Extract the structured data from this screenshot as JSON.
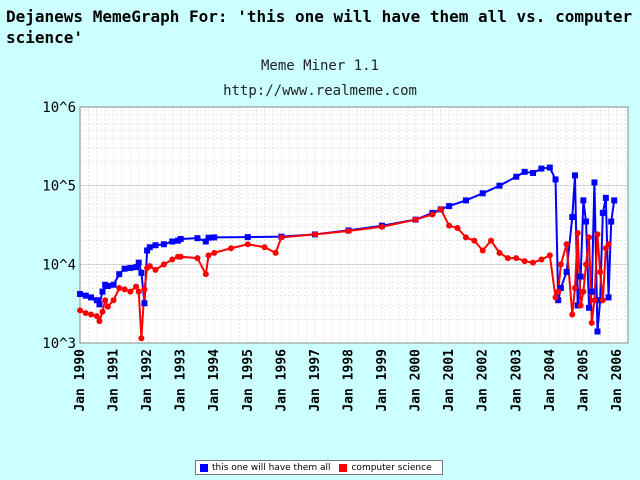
{
  "header": {
    "title": "Dejanews MemeGraph For: 'this one will have them all vs. computer science'",
    "subtitle": "Meme Miner 1.1",
    "url": "http://www.realmeme.com"
  },
  "colors": {
    "background": "#ccffff",
    "plot_bg": "#ffffff",
    "series1": "#0000ff",
    "series2": "#ff0000",
    "grid": "#d8d8d8"
  },
  "chart_data": {
    "type": "line",
    "yscale": "log",
    "ylim": [
      1000,
      1000000
    ],
    "xlim": [
      1990.0,
      2006.33
    ],
    "y_tick_labels": [
      "10^3",
      "10^4",
      "10^5",
      "10^6"
    ],
    "x_tick_labels": [
      "Jan 1990",
      "Jan 1991",
      "Jan 1992",
      "Jan 1993",
      "Jan 1994",
      "Jan 1995",
      "Jan 1996",
      "Jan 1997",
      "Jan 1998",
      "Jan 1999",
      "Jan 2000",
      "Jan 2001",
      "Jan 2002",
      "Jan 2003",
      "Jan 2004",
      "Jan 2005",
      "Jan 2006"
    ],
    "grid": true,
    "legend_position": "bottom-center",
    "series": [
      {
        "name": "this one will have them all",
        "color": "#0000ff",
        "marker": "square",
        "x": [
          1990.0,
          1990.17,
          1990.33,
          1990.5,
          1990.58,
          1990.67,
          1990.75,
          1990.83,
          1991.0,
          1991.17,
          1991.33,
          1991.5,
          1991.67,
          1991.75,
          1991.83,
          1991.92,
          1992.0,
          1992.08,
          1992.25,
          1992.5,
          1992.75,
          1992.92,
          1993.0,
          1993.5,
          1993.75,
          1993.83,
          1994.0,
          1995.0,
          1996.0,
          1997.0,
          1998.0,
          1999.0,
          2000.0,
          2000.5,
          2000.75,
          2001.0,
          2001.5,
          2002.0,
          2002.5,
          2003.0,
          2003.25,
          2003.5,
          2003.75,
          2004.0,
          2004.17,
          2004.25,
          2004.33,
          2004.5,
          2004.67,
          2004.75,
          2004.83,
          2004.92,
          2005.0,
          2005.08,
          2005.17,
          2005.25,
          2005.33,
          2005.42,
          2005.5,
          2005.58,
          2005.67,
          2005.75,
          2005.83,
          2005.92,
          2006.0,
          2006.08
        ],
        "y": [
          4200,
          4000,
          3800,
          3500,
          3100,
          4500,
          5500,
          5300,
          5500,
          7500,
          8800,
          9000,
          9200,
          10500,
          7800,
          3200,
          15000,
          16500,
          17500,
          18000,
          19500,
          20000,
          21000,
          21500,
          19500,
          21800,
          22000,
          22200,
          22500,
          24000,
          27000,
          31000,
          37000,
          45000,
          50000,
          55000,
          65000,
          80000,
          100000,
          130000,
          150000,
          145000,
          165000,
          170000,
          120000,
          3500,
          5000,
          8000,
          40000,
          135000,
          3000,
          7000,
          65000,
          35000,
          2800,
          4500,
          110000,
          1400,
          3500,
          45000,
          70000,
          3800,
          35000,
          65000,
          null,
          null
        ]
      },
      {
        "name": "computer science",
        "color": "#ff0000",
        "marker": "circle",
        "x": [
          1990.0,
          1990.17,
          1990.33,
          1990.5,
          1990.58,
          1990.67,
          1990.75,
          1990.83,
          1991.0,
          1991.17,
          1991.33,
          1991.5,
          1991.67,
          1991.75,
          1991.83,
          1991.92,
          1992.0,
          1992.08,
          1992.25,
          1992.5,
          1992.75,
          1992.92,
          1993.0,
          1993.5,
          1993.75,
          1993.83,
          1994.0,
          1994.5,
          1995.0,
          1995.5,
          1995.83,
          1996.0,
          1997.0,
          1998.0,
          1999.0,
          2000.0,
          2000.5,
          2000.75,
          2001.0,
          2001.25,
          2001.5,
          2001.75,
          2002.0,
          2002.25,
          2002.5,
          2002.75,
          2003.0,
          2003.25,
          2003.5,
          2003.75,
          2004.0,
          2004.17,
          2004.25,
          2004.33,
          2004.5,
          2004.67,
          2004.75,
          2004.83,
          2004.92,
          2005.0,
          2005.08,
          2005.17,
          2005.25,
          2005.33,
          2005.42,
          2005.5,
          2005.58,
          2005.67,
          2005.75,
          2005.83,
          2005.92,
          2006.0
        ],
        "y": [
          2600,
          2400,
          2300,
          2200,
          1900,
          2500,
          3500,
          2900,
          3500,
          5000,
          4800,
          4500,
          5200,
          4500,
          1150,
          4800,
          9000,
          9500,
          8500,
          10000,
          11500,
          12500,
          12500,
          12000,
          7500,
          13000,
          14000,
          16000,
          18000,
          16500,
          14000,
          22000,
          24000,
          26500,
          30000,
          37000,
          43000,
          50000,
          31000,
          29000,
          22000,
          20000,
          15000,
          20000,
          14000,
          12000,
          12000,
          11000,
          10500,
          11500,
          13000,
          3800,
          4500,
          10000,
          18000,
          2300,
          5000,
          25000,
          3000,
          4500,
          10000,
          22000,
          1800,
          3500,
          24000,
          8000,
          3500,
          16000,
          18000,
          null,
          null,
          null
        ]
      }
    ]
  }
}
